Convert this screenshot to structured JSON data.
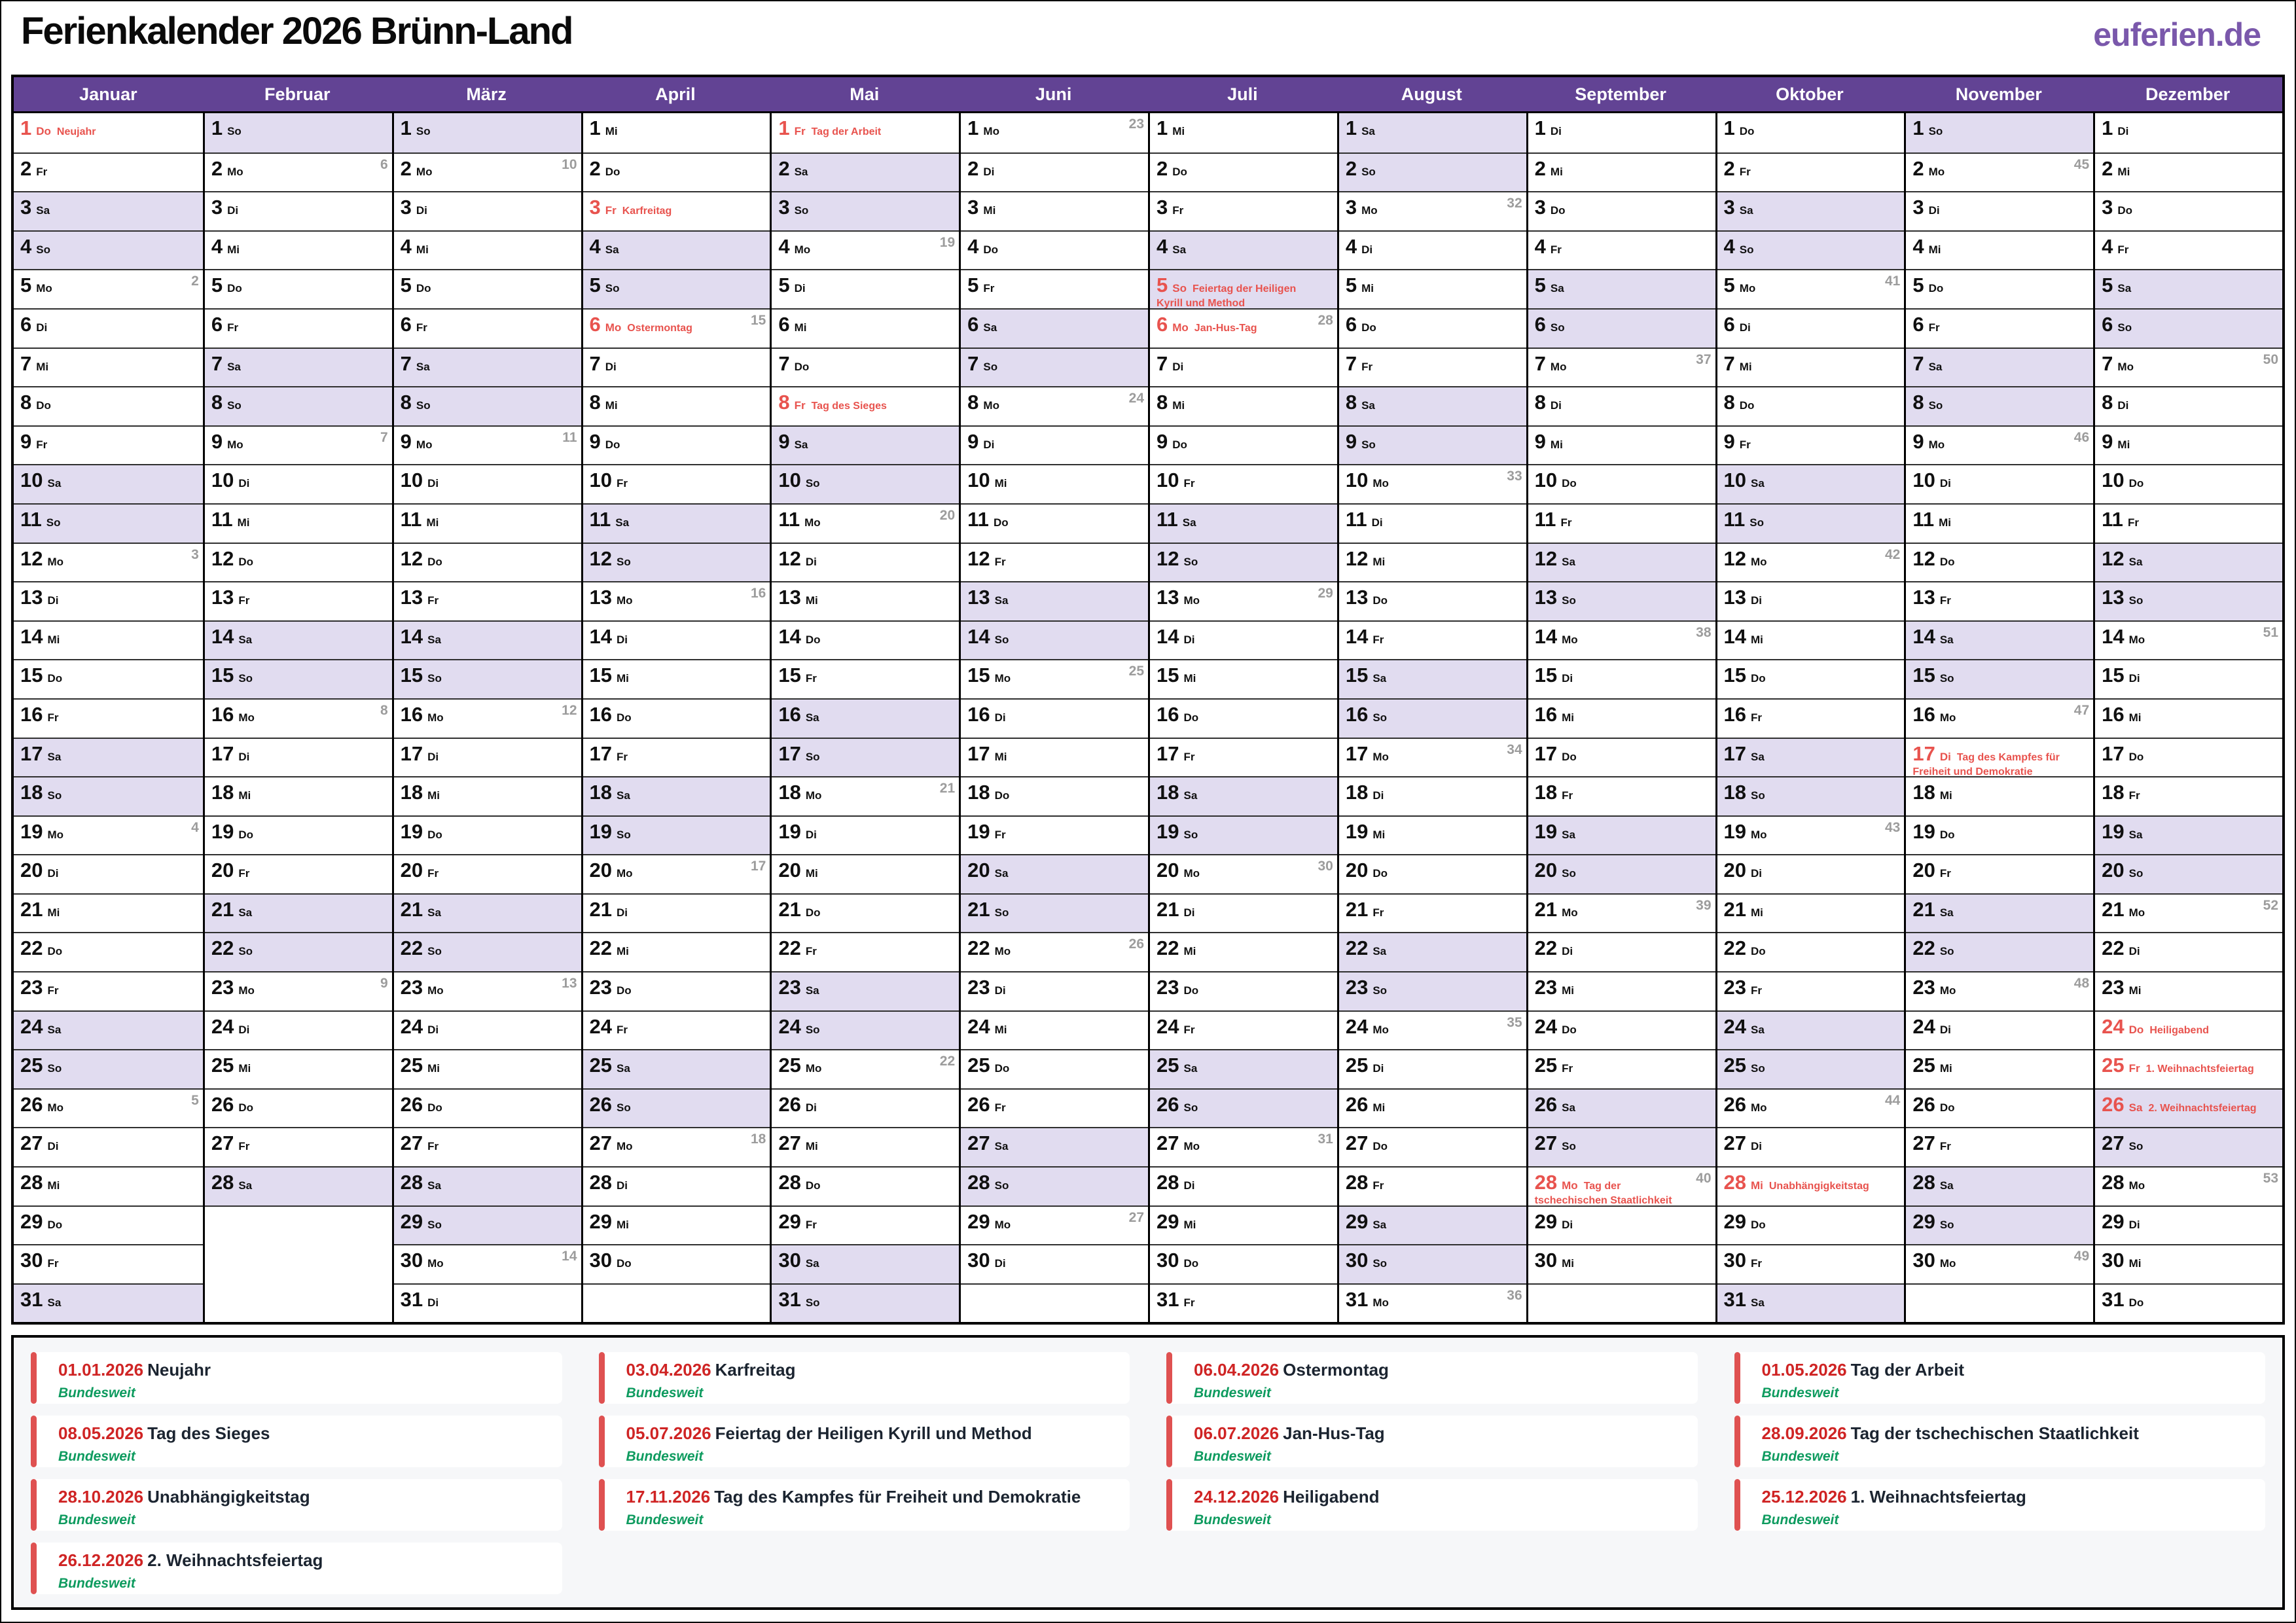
{
  "page": {
    "title": "Ferienkalender 2026 Brünn-Land",
    "logo": "euferien.de"
  },
  "colors": {
    "header_purple": "#624394",
    "weekend_lavender": "#e1dcf0",
    "holiday_red": "#e8534e",
    "weeknum_gray": "#9c9c9c",
    "legend_date_red": "#cf2424",
    "legend_bar_red": "#df5151",
    "scope_green": "#0e9b5f",
    "logo_purple": "#7a58ab"
  },
  "weekdays": [
    "Mo",
    "Di",
    "Mi",
    "Do",
    "Fr",
    "Sa",
    "So"
  ],
  "months": [
    {
      "name": "Januar",
      "start": 3,
      "days": 31,
      "weeks": {
        "5": 2,
        "12": 3,
        "19": 4,
        "26": 5
      },
      "holidays": {
        "1": "Neujahr"
      }
    },
    {
      "name": "Februar",
      "start": 6,
      "days": 28,
      "weeks": {
        "2": 6,
        "9": 7,
        "16": 8,
        "23": 9
      },
      "holidays": {}
    },
    {
      "name": "März",
      "start": 6,
      "days": 31,
      "weeks": {
        "2": 10,
        "9": 11,
        "16": 12,
        "23": 13,
        "30": 14
      },
      "holidays": {}
    },
    {
      "name": "April",
      "start": 2,
      "days": 30,
      "weeks": {
        "6": 15,
        "13": 16,
        "20": 17,
        "27": 18
      },
      "holidays": {
        "3": "Karfreitag",
        "6": "Ostermontag"
      }
    },
    {
      "name": "Mai",
      "start": 4,
      "days": 31,
      "weeks": {
        "4": 19,
        "11": 20,
        "18": 21,
        "25": 22
      },
      "holidays": {
        "1": "Tag der Arbeit",
        "8": "Tag des Sieges"
      }
    },
    {
      "name": "Juni",
      "start": 0,
      "days": 30,
      "weeks": {
        "1": 23,
        "8": 24,
        "15": 25,
        "22": 26,
        "29": 27
      },
      "holidays": {}
    },
    {
      "name": "Juli",
      "start": 2,
      "days": 31,
      "weeks": {
        "6": 28,
        "13": 29,
        "20": 30,
        "27": 31
      },
      "holidays": {
        "5": "Feiertag der Heiligen Kyrill und Method",
        "6": "Jan-Hus-Tag"
      }
    },
    {
      "name": "August",
      "start": 5,
      "days": 31,
      "weeks": {
        "3": 32,
        "10": 33,
        "17": 34,
        "24": 35,
        "31": 36
      },
      "holidays": {}
    },
    {
      "name": "September",
      "start": 1,
      "days": 30,
      "weeks": {
        "7": 37,
        "14": 38,
        "21": 39,
        "28": 40
      },
      "holidays": {
        "28": "Tag der tschechischen Staatlichkeit"
      }
    },
    {
      "name": "Oktober",
      "start": 3,
      "days": 31,
      "weeks": {
        "5": 41,
        "12": 42,
        "19": 43,
        "26": 44
      },
      "holidays": {
        "28": "Unabhängigkeitstag"
      }
    },
    {
      "name": "November",
      "start": 6,
      "days": 30,
      "weeks": {
        "2": 45,
        "9": 46,
        "16": 47,
        "23": 48,
        "30": 49
      },
      "holidays": {
        "17": "Tag des Kampfes für Freiheit und Demokratie"
      }
    },
    {
      "name": "Dezember",
      "start": 1,
      "days": 31,
      "weeks": {
        "7": 50,
        "14": 51,
        "21": 52,
        "28": 53
      },
      "holidays": {
        "24": "Heiligabend",
        "25": "1. Weihnachtsfeiertag",
        "26": "2. Weihnachtsfeiertag"
      }
    }
  ],
  "legend": {
    "items": [
      {
        "date": "01.01.2026",
        "name": "Neujahr",
        "scope": "Bundesweit"
      },
      {
        "date": "03.04.2026",
        "name": "Karfreitag",
        "scope": "Bundesweit"
      },
      {
        "date": "06.04.2026",
        "name": "Ostermontag",
        "scope": "Bundesweit"
      },
      {
        "date": "01.05.2026",
        "name": "Tag der Arbeit",
        "scope": "Bundesweit"
      },
      {
        "date": "08.05.2026",
        "name": "Tag des Sieges",
        "scope": "Bundesweit"
      },
      {
        "date": "05.07.2026",
        "name": "Feiertag der Heiligen Kyrill und Method",
        "scope": "Bundesweit"
      },
      {
        "date": "06.07.2026",
        "name": "Jan-Hus-Tag",
        "scope": "Bundesweit"
      },
      {
        "date": "28.09.2026",
        "name": "Tag der tschechischen Staatlichkeit",
        "scope": "Bundesweit"
      },
      {
        "date": "28.10.2026",
        "name": "Unabhängigkeitstag",
        "scope": "Bundesweit"
      },
      {
        "date": "17.11.2026",
        "name": "Tag des Kampfes für Freiheit und Demokratie",
        "scope": "Bundesweit"
      },
      {
        "date": "24.12.2026",
        "name": "Heiligabend",
        "scope": "Bundesweit"
      },
      {
        "date": "25.12.2026",
        "name": "1. Weihnachtsfeiertag",
        "scope": "Bundesweit"
      },
      {
        "date": "26.12.2026",
        "name": "2. Weihnachtsfeiertag",
        "scope": "Bundesweit"
      }
    ]
  }
}
